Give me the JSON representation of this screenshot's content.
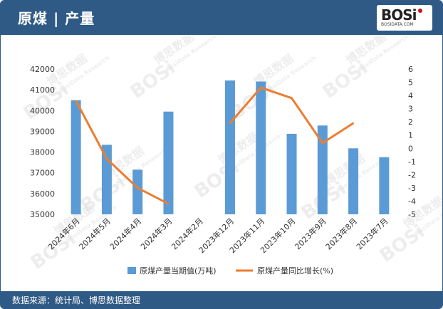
{
  "header": {
    "title": "原煤 | 产量"
  },
  "logo": {
    "text": "BOSi",
    "sub": "BOSIDATA.COM"
  },
  "footer": {
    "source": "数据来源：统计局、博思数据整理"
  },
  "watermark": {
    "cn": "博思数据",
    "en": "BosiData Research"
  },
  "colors": {
    "bar": "#5b9bd5",
    "line": "#ed7d31",
    "header": "#2f5a85"
  },
  "chart_data": {
    "type": "bar",
    "categories": [
      "2024年6月",
      "2024年5月",
      "2024年4月",
      "2024年3月",
      "2024年2月",
      "2023年12月",
      "2023年11月",
      "2023年10月",
      "2023年9月",
      "2023年8月",
      "2023年7月"
    ],
    "series": [
      {
        "name": "原煤产量当期值(万吨)",
        "type": "bar",
        "axis": "left",
        "values": [
          40500,
          38350,
          37150,
          39950,
          null,
          41450,
          41400,
          38880,
          39280,
          38180,
          37750
        ]
      },
      {
        "name": "原煤产量同比增长(%)",
        "type": "line",
        "axis": "right",
        "values": [
          3.6,
          -0.8,
          -3.0,
          -4.2,
          null,
          1.9,
          4.6,
          3.8,
          0.4,
          1.9,
          null
        ]
      }
    ],
    "y_left": {
      "min": 35000,
      "max": 42000,
      "ticks": [
        35000,
        36000,
        37000,
        38000,
        39000,
        40000,
        41000,
        42000
      ]
    },
    "y_right": {
      "min": -5,
      "max": 6,
      "ticks": [
        -5,
        -4,
        -3,
        -2,
        -1,
        0,
        1,
        2,
        3,
        4,
        5,
        6
      ]
    },
    "legend": "bottom",
    "grid": false
  }
}
